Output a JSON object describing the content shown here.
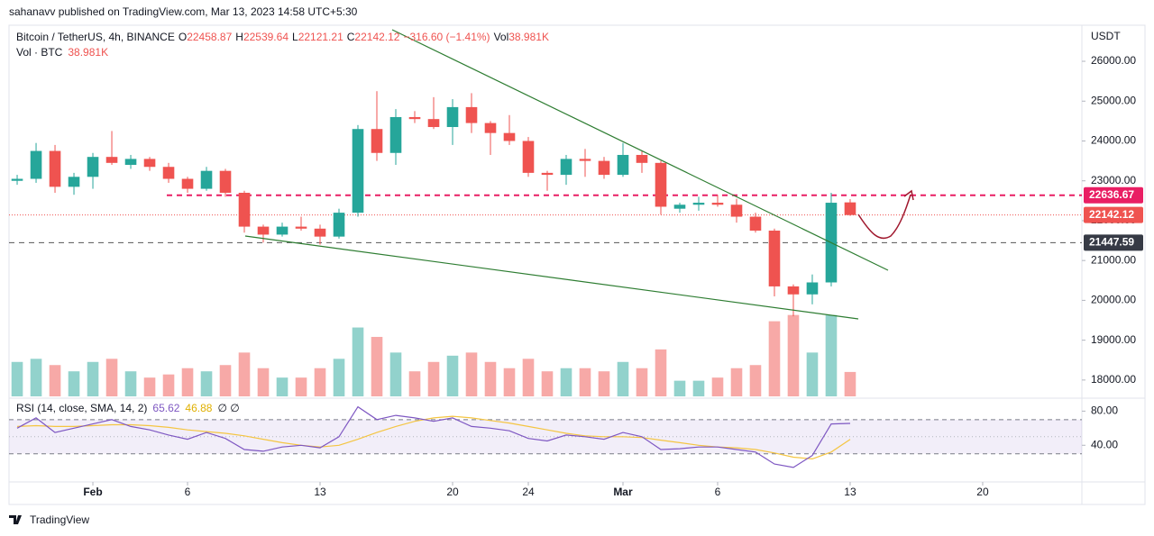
{
  "header": {
    "publisher": "sahanavv published on TradingView.com, Mar 13, 2023 14:58 UTC+5:30",
    "brand": "TradingView"
  },
  "chart_data": {
    "type": "candlestick",
    "symbol": "Bitcoin / TetherUS, 4h, BINANCE",
    "ohlc_labels": [
      "O",
      "H",
      "L",
      "C"
    ],
    "change_label": "−316.60 (−1.41%)",
    "volume_title": "Vol",
    "volume_label": "38.981K",
    "volume_subtitle": "Vol · BTC",
    "currency": "USDT",
    "up_color": "#26a69a",
    "down_color": "#ef5350",
    "x": [
      -4,
      -3,
      -2,
      -1,
      0,
      1,
      2,
      3,
      4,
      5,
      6,
      7,
      8,
      9,
      10,
      11,
      12,
      13,
      14,
      15,
      16,
      17,
      18,
      19,
      20,
      21,
      22,
      23,
      24,
      25,
      26,
      27,
      28,
      29,
      30,
      31,
      32,
      33,
      34,
      35,
      36,
      37,
      38,
      39,
      40
    ],
    "open": [
      23000,
      23050,
      23750,
      22850,
      23100,
      23600,
      23400,
      23550,
      23350,
      23050,
      22800,
      23250,
      22700,
      21850,
      21650,
      21850,
      21800,
      21600,
      22200,
      24300,
      23700,
      24600,
      24550,
      24350,
      24850,
      24450,
      24200,
      24000,
      23200,
      23150,
      23550,
      23500,
      23150,
      23650,
      23450,
      22300,
      22400,
      22450,
      22400,
      22100,
      21750,
      20350,
      20150,
      20450,
      22458.87
    ],
    "high": [
      23150,
      23950,
      23900,
      23200,
      23700,
      24250,
      23650,
      23600,
      23450,
      23100,
      23350,
      23300,
      22750,
      21900,
      21950,
      22100,
      21900,
      22300,
      24400,
      25250,
      24800,
      24750,
      25100,
      25050,
      25200,
      24500,
      24650,
      24100,
      23250,
      23650,
      23800,
      23600,
      23950,
      23750,
      23500,
      22450,
      22600,
      22650,
      22550,
      22200,
      21800,
      20400,
      20650,
      22700,
      22539.64
    ],
    "low": [
      22900,
      22950,
      22700,
      22650,
      22800,
      23400,
      23300,
      23250,
      22950,
      22700,
      22750,
      22600,
      21700,
      21450,
      21600,
      21750,
      21400,
      21550,
      22100,
      23500,
      23400,
      24450,
      24300,
      23900,
      24200,
      23650,
      23900,
      23100,
      22750,
      22900,
      23100,
      23050,
      23100,
      23200,
      22150,
      22200,
      22250,
      22350,
      21950,
      21700,
      20100,
      19600,
      19900,
      20350,
      22121.21
    ],
    "close": [
      23050,
      23750,
      22850,
      23100,
      23600,
      23450,
      23550,
      23350,
      23050,
      22800,
      23250,
      22700,
      21850,
      21650,
      21850,
      21800,
      21600,
      22200,
      24300,
      23700,
      24600,
      24550,
      24350,
      24850,
      24450,
      24200,
      24000,
      23200,
      23150,
      23550,
      23500,
      23150,
      23650,
      23450,
      22350,
      22400,
      22450,
      22400,
      22100,
      21750,
      20350,
      20150,
      20450,
      22450,
      22142.12
    ],
    "volume": [
      55,
      60,
      50,
      40,
      55,
      60,
      40,
      30,
      35,
      45,
      40,
      50,
      70,
      45,
      30,
      30,
      45,
      60,
      110,
      95,
      70,
      40,
      55,
      65,
      70,
      55,
      45,
      60,
      40,
      45,
      45,
      40,
      55,
      45,
      75,
      25,
      25,
      30,
      45,
      50,
      120,
      130,
      70,
      130,
      38.981
    ],
    "volume_ylim": [
      0,
      590
    ],
    "xlim": [
      -4.43,
      52.24
    ],
    "xticks": [
      {
        "value": 0,
        "label": "Feb"
      },
      {
        "value": 5,
        "label": "6"
      },
      {
        "value": 12,
        "label": "13"
      },
      {
        "value": 19,
        "label": "20"
      },
      {
        "value": 23,
        "label": "24"
      },
      {
        "value": 28,
        "label": "Mar"
      },
      {
        "value": 33,
        "label": "6"
      },
      {
        "value": 40,
        "label": "13"
      },
      {
        "value": 47,
        "label": "20"
      }
    ],
    "ylim": [
      17590,
      26860
    ],
    "yticks": [
      {
        "value": 18000,
        "label": "18000.00"
      },
      {
        "value": 19000,
        "label": "19000.00"
      },
      {
        "value": 20000,
        "label": "20000.00"
      },
      {
        "value": 21000,
        "label": "21000.00"
      },
      {
        "value": 22000,
        "label": "22000.00"
      },
      {
        "value": 23000,
        "label": "23000.00"
      },
      {
        "value": 24000,
        "label": "24000.00"
      },
      {
        "value": 25000,
        "label": "25000.00"
      },
      {
        "value": 26000,
        "label": "26000.00"
      }
    ],
    "levels": [
      {
        "value": 22636.67,
        "color": "#e91e63",
        "style": "dashed"
      },
      {
        "value": 22142.12,
        "color": "#ef5350",
        "style": "dotted"
      },
      {
        "value": 21447.59,
        "color": "#555555",
        "style": "dashed"
      }
    ],
    "rsi": {
      "title": "RSI (14, close, SMA, 14, 2)",
      "extra": "∅ ∅",
      "color": "#7e57c2",
      "sma_color": "#f4c542",
      "values": [
        60,
        72,
        55,
        60,
        65,
        70,
        62,
        58,
        52,
        47,
        55,
        48,
        35,
        33,
        38,
        40,
        37,
        50,
        85,
        70,
        75,
        72,
        68,
        72,
        62,
        60,
        57,
        48,
        45,
        52,
        50,
        47,
        55,
        50,
        35,
        36,
        38,
        38,
        35,
        32,
        18,
        14,
        28,
        65,
        65.62
      ],
      "sma": [
        62,
        63,
        62,
        62,
        63,
        64,
        64,
        63,
        61,
        58,
        56,
        54,
        51,
        47,
        43,
        40,
        38,
        40,
        47,
        55,
        62,
        68,
        72,
        74,
        72,
        69,
        66,
        62,
        58,
        54,
        51,
        50,
        50,
        49,
        46,
        43,
        40,
        38,
        37,
        35,
        31,
        26,
        24,
        32,
        46.88
      ],
      "ylim": [
        -3,
        92
      ],
      "yticks": [
        {
          "value": 40,
          "label": "40.00"
        },
        {
          "value": 80,
          "label": "80.00"
        }
      ],
      "band": [
        30,
        70
      ],
      "middle": 50
    }
  }
}
